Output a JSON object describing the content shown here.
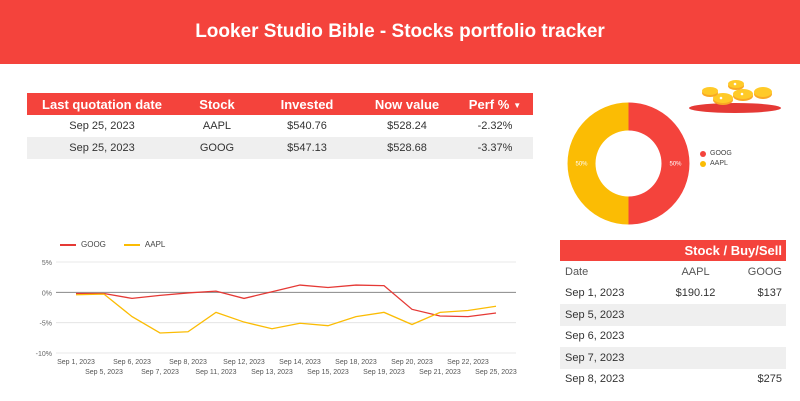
{
  "header": {
    "title": "Looker Studio Bible - Stocks portfolio tracker"
  },
  "summary_table": {
    "columns": [
      "Last quotation date",
      "Stock",
      "Invested",
      "Now value",
      "Perf %"
    ],
    "sort_indicator": "▼",
    "rows": [
      [
        "Sep 25, 2023",
        "AAPL",
        "$540.76",
        "$528.24",
        "-2.32%"
      ],
      [
        "Sep 25, 2023",
        "GOOG",
        "$547.13",
        "$528.68",
        "-3.37%"
      ]
    ]
  },
  "donut": {
    "slices": [
      {
        "name": "GOOG",
        "value": 50,
        "label": "50%",
        "color": "#f4433c"
      },
      {
        "name": "AAPL",
        "value": 50,
        "label": "50%",
        "color": "#fbbc04"
      }
    ]
  },
  "buy_sell_table": {
    "title": "Stock / Buy/Sell",
    "columns": [
      "Date",
      "AAPL",
      "GOOG"
    ],
    "rows": [
      [
        "Sep 1, 2023",
        "$190.12",
        "$137"
      ],
      [
        "Sep 5, 2023",
        "",
        ""
      ],
      [
        "Sep 6, 2023",
        "",
        ""
      ],
      [
        "Sep 7, 2023",
        "",
        ""
      ],
      [
        "Sep 8, 2023",
        "",
        "$275"
      ]
    ]
  },
  "chart_data": {
    "type": "line",
    "x": [
      "Sep 1, 2023",
      "Sep 5, 2023",
      "Sep 6, 2023",
      "Sep 7, 2023",
      "Sep 8, 2023",
      "Sep 11, 2023",
      "Sep 12, 2023",
      "Sep 13, 2023",
      "Sep 14, 2023",
      "Sep 15, 2023",
      "Sep 18, 2023",
      "Sep 19, 2023",
      "Sep 20, 2023",
      "Sep 21, 2023",
      "Sep 22, 2023",
      "Sep 25, 2023"
    ],
    "series": [
      {
        "name": "GOOG",
        "color": "#e53935",
        "values": [
          -0.2,
          -0.2,
          -1.0,
          -0.5,
          -0.1,
          0.2,
          -1.0,
          0.1,
          1.2,
          0.8,
          1.2,
          1.1,
          -2.8,
          -3.9,
          -4.0,
          -3.4
        ]
      },
      {
        "name": "AAPL",
        "color": "#fbbc04",
        "values": [
          -0.4,
          -0.3,
          -4.0,
          -6.7,
          -6.5,
          -3.3,
          -4.9,
          -6.0,
          -5.1,
          -5.5,
          -4.0,
          -3.3,
          -5.3,
          -3.3,
          -3.0,
          -2.3
        ]
      }
    ],
    "yticks": [
      "5%",
      "0%",
      "-5%",
      "-10%"
    ],
    "ylim": [
      -10,
      5
    ],
    "grid": true,
    "legend": "top-left"
  }
}
